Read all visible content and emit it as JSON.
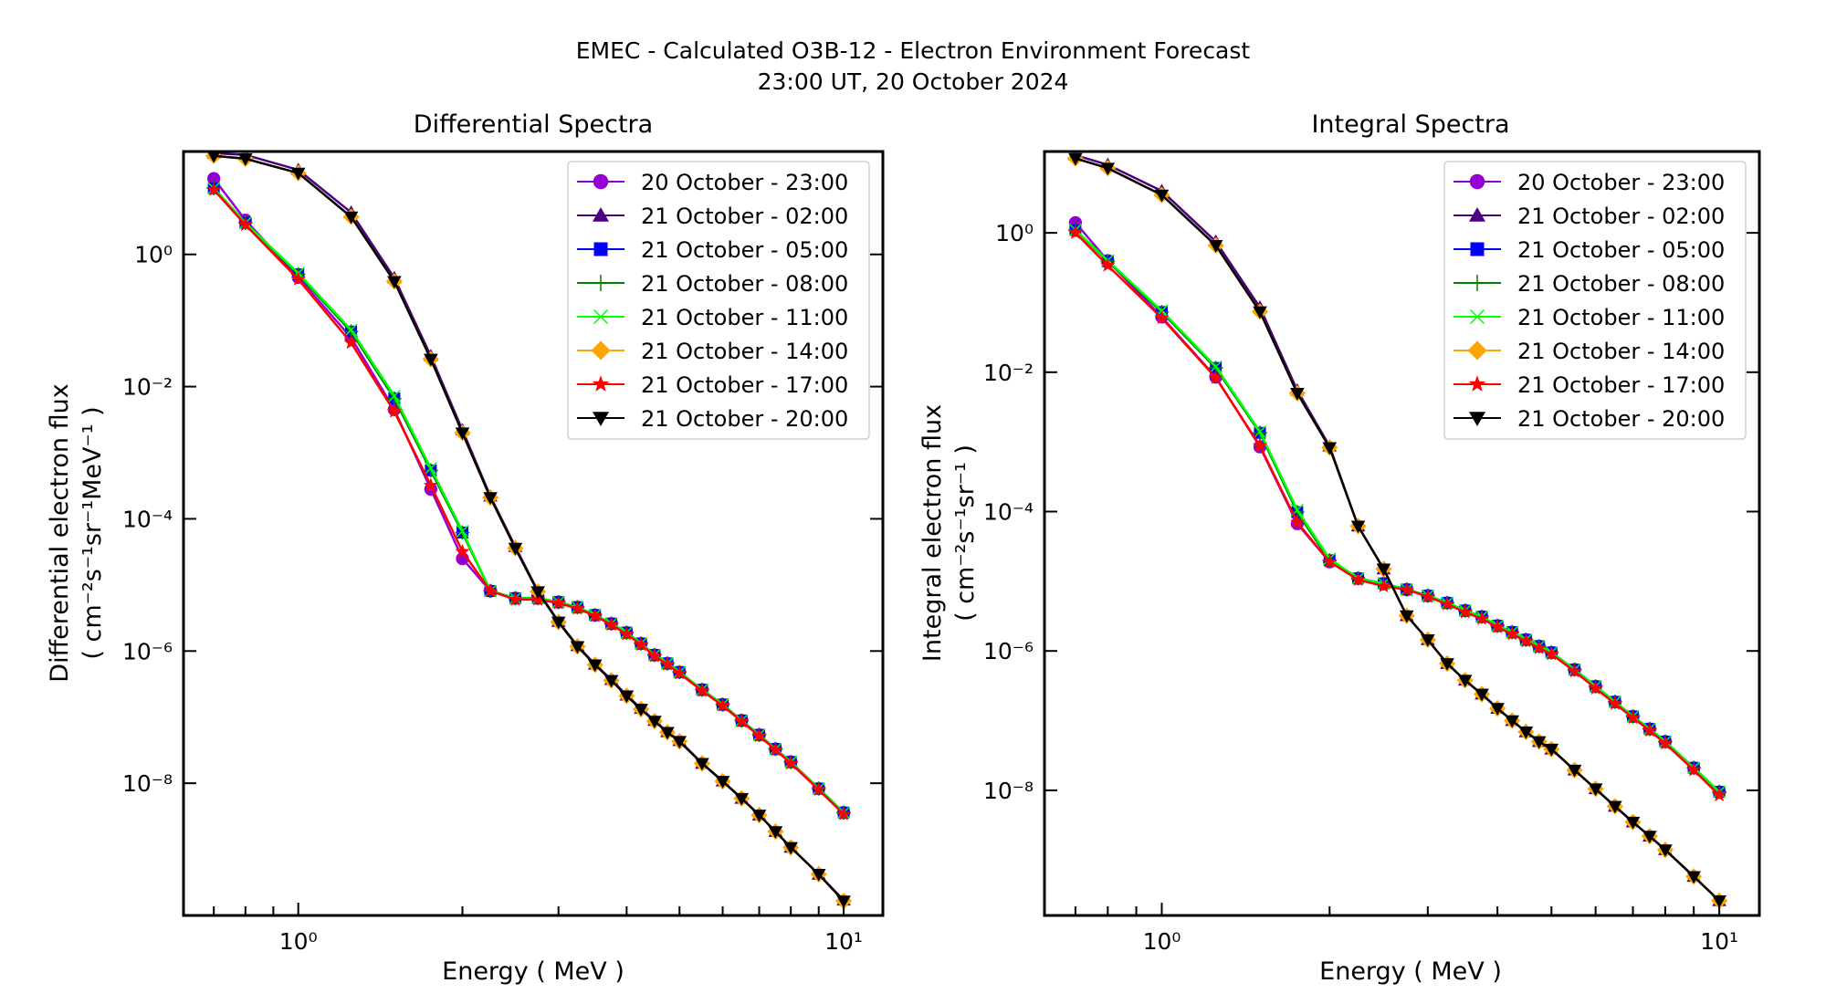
{
  "figure": {
    "title_line1": "EMEC - Calculated O3B-12 - Electron Environment Forecast",
    "title_line2": "23:00 UT, 20 October 2024"
  },
  "series_styles": [
    {
      "name": "20 October - 23:00",
      "color": "#9400D3",
      "marker": "circle"
    },
    {
      "name": "21 October - 02:00",
      "color": "#4B0082",
      "marker": "triangle-up"
    },
    {
      "name": "21 October - 05:00",
      "color": "#0000FF",
      "marker": "square"
    },
    {
      "name": "21 October - 08:00",
      "color": "#008000",
      "marker": "plus"
    },
    {
      "name": "21 October - 11:00",
      "color": "#00FF00",
      "marker": "x"
    },
    {
      "name": "21 October - 14:00",
      "color": "#FFA500",
      "marker": "diamond"
    },
    {
      "name": "21 October - 17:00",
      "color": "#FF0000",
      "marker": "star"
    },
    {
      "name": "21 October - 20:00",
      "color": "#000000",
      "marker": "triangle-down"
    }
  ],
  "chart_data": [
    {
      "type": "line",
      "title": "Differential Spectra",
      "xlabel": "Energy ( MeV )",
      "ylabel_line1": "Differential electron flux",
      "ylabel_line2": "( cm⁻²s⁻¹sr⁻¹MeV⁻¹ )",
      "xscale": "log",
      "yscale": "log",
      "xlim": [
        0.616,
        11.8
      ],
      "ylim": [
        1e-10,
        36
      ],
      "xticks": [
        {
          "value": 1,
          "label": "10⁰"
        },
        {
          "value": 10,
          "label": "10¹"
        }
      ],
      "yticks": [
        {
          "value": 1,
          "label": "10⁰"
        },
        {
          "value": 0.01,
          "label": "10⁻²"
        },
        {
          "value": 0.0001,
          "label": "10⁻⁴"
        },
        {
          "value": 1e-06,
          "label": "10⁻⁶"
        },
        {
          "value": 1e-08,
          "label": "10⁻⁸"
        }
      ],
      "legend": "top-right",
      "grid": false,
      "x": [
        0.7,
        0.8,
        1.0,
        1.25,
        1.5,
        1.75,
        2.0,
        2.25,
        2.5,
        2.75,
        3.0,
        3.25,
        3.5,
        3.75,
        4.0,
        4.25,
        4.5,
        4.75,
        5.0,
        5.5,
        6.0,
        6.5,
        7.0,
        7.5,
        8.0,
        9.0,
        10.0
      ],
      "series": [
        {
          "name": "20 October - 23:00",
          "values": [
            14,
            3.3,
            0.45,
            0.055,
            0.0045,
            0.00028,
            2.5e-05,
            8.1e-06,
            6.3e-06,
            6.3e-06,
            5.5e-06,
            4.6e-06,
            3.5e-06,
            2.6e-06,
            1.9e-06,
            1.3e-06,
            8.7e-07,
            6.5e-07,
            4.8e-07,
            2.6e-07,
            1.55e-07,
            8.9e-08,
            5.4e-08,
            3.3e-08,
            2.1e-08,
            8.3e-09,
            3.6e-09
          ]
        },
        {
          "name": "21 October - 02:00",
          "values": [
            34,
            32,
            19,
            4.3,
            0.44,
            0.029,
            0.0022,
            0.00022,
            3.8e-05,
            8.1e-06,
            2.8e-06,
            1.2e-06,
            6.3e-07,
            3.7e-07,
            2.15e-07,
            1.35e-07,
            8.9e-08,
            6e-08,
            4.4e-08,
            2e-08,
            1.08e-08,
            5.9e-09,
            3.3e-09,
            1.86e-09,
            1.07e-09,
            4.2e-10,
            1.7e-10
          ]
        },
        {
          "name": "21 October - 05:00",
          "values": [
            10,
            3.0,
            0.5,
            0.068,
            0.0066,
            0.00054,
            6.2e-05,
            8.1e-06,
            6.3e-06,
            6.3e-06,
            5.5e-06,
            4.6e-06,
            3.5e-06,
            2.6e-06,
            1.9e-06,
            1.3e-06,
            8.7e-07,
            6.5e-07,
            4.8e-07,
            2.6e-07,
            1.55e-07,
            8.9e-08,
            5.4e-08,
            3.3e-08,
            2.1e-08,
            8.3e-09,
            3.6e-09
          ]
        },
        {
          "name": "21 October - 08:00",
          "values": [
            10,
            3.0,
            0.5,
            0.068,
            0.0066,
            0.00054,
            6.2e-05,
            8.1e-06,
            6.3e-06,
            6.3e-06,
            5.5e-06,
            4.6e-06,
            3.5e-06,
            2.6e-06,
            1.9e-06,
            1.3e-06,
            8.7e-07,
            6.5e-07,
            4.8e-07,
            2.6e-07,
            1.55e-07,
            8.9e-08,
            5.4e-08,
            3.3e-08,
            2.1e-08,
            8.3e-09,
            3.6e-09
          ]
        },
        {
          "name": "21 October - 11:00",
          "values": [
            10,
            3.0,
            0.52,
            0.072,
            0.0072,
            0.00058,
            6.5e-05,
            8.1e-06,
            6.3e-06,
            6.3e-06,
            5.5e-06,
            4.6e-06,
            3.5e-06,
            2.6e-06,
            1.9e-06,
            1.3e-06,
            8.7e-07,
            6.5e-07,
            4.8e-07,
            2.6e-07,
            1.55e-07,
            8.9e-08,
            5.4e-08,
            3.3e-08,
            2.1e-08,
            8.3e-09,
            3.6e-09
          ]
        },
        {
          "name": "21 October - 14:00",
          "values": [
            31,
            28,
            17,
            3.7,
            0.39,
            0.026,
            0.002,
            0.00021,
            3.6e-05,
            7.9e-06,
            2.75e-06,
            1.17e-06,
            6.2e-07,
            3.6e-07,
            2.1e-07,
            1.32e-07,
            8.7e-08,
            5.9e-08,
            4.3e-08,
            2e-08,
            1.07e-08,
            5.9e-09,
            3.3e-09,
            1.86e-09,
            1.07e-09,
            4.2e-10,
            1.66e-10
          ]
        },
        {
          "name": "21 October - 17:00",
          "values": [
            9.5,
            2.8,
            0.42,
            0.046,
            0.0042,
            0.00032,
            3.2e-05,
            8.1e-06,
            6e-06,
            6e-06,
            5.3e-06,
            4.4e-06,
            3.4e-06,
            2.5e-06,
            1.8e-06,
            1.25e-06,
            8.4e-07,
            6.3e-07,
            4.6e-07,
            2.5e-07,
            1.5e-07,
            8.6e-08,
            5.2e-08,
            3.2e-08,
            2e-08,
            8e-09,
            3.4e-09
          ]
        },
        {
          "name": "21 October - 20:00",
          "values": [
            31,
            28,
            17,
            3.7,
            0.39,
            0.026,
            0.002,
            0.00021,
            3.6e-05,
            7.9e-06,
            2.75e-06,
            1.17e-06,
            6.2e-07,
            3.6e-07,
            2.1e-07,
            1.32e-07,
            8.7e-08,
            5.9e-08,
            4.3e-08,
            2e-08,
            1.07e-08,
            5.9e-09,
            3.3e-09,
            1.86e-09,
            1.07e-09,
            4.2e-10,
            1.66e-10
          ]
        }
      ]
    },
    {
      "type": "line",
      "title": "Integral Spectra",
      "xlabel": "Energy ( MeV )",
      "ylabel_line1": "Integral electron flux",
      "ylabel_line2": "( cm⁻²s⁻¹sr⁻¹ )",
      "xscale": "log",
      "yscale": "log",
      "xlim": [
        0.616,
        11.8
      ],
      "ylim": [
        1.6e-10,
        14.7
      ],
      "xticks": [
        {
          "value": 1,
          "label": "10⁰"
        },
        {
          "value": 10,
          "label": "10¹"
        }
      ],
      "yticks": [
        {
          "value": 1,
          "label": "10⁰"
        },
        {
          "value": 0.01,
          "label": "10⁻²"
        },
        {
          "value": 0.0001,
          "label": "10⁻⁴"
        },
        {
          "value": 1e-06,
          "label": "10⁻⁶"
        },
        {
          "value": 1e-08,
          "label": "10⁻⁸"
        }
      ],
      "legend": "top-right",
      "grid": false,
      "x": [
        0.7,
        0.8,
        1.0,
        1.25,
        1.5,
        1.75,
        2.0,
        2.25,
        2.5,
        2.75,
        3.0,
        3.25,
        3.5,
        3.75,
        4.0,
        4.25,
        4.5,
        4.75,
        5.0,
        5.5,
        6.0,
        6.5,
        7.0,
        7.5,
        8.0,
        9.0,
        10.0
      ],
      "series": [
        {
          "name": "20 October - 23:00",
          "values": [
            1.4,
            0.4,
            0.062,
            0.0085,
            0.00085,
            6.7e-05,
            1.9e-05,
            1.1e-05,
            9.3e-06,
            7.6e-06,
            6.2e-06,
            4.9e-06,
            3.8e-06,
            3.1e-06,
            2.3e-06,
            1.86e-06,
            1.45e-06,
            1.17e-06,
            9.5e-07,
            5.4e-07,
            3.1e-07,
            1.86e-07,
            1.15e-07,
            7.6e-08,
            5e-08,
            2.1e-08,
            9.5e-09
          ]
        },
        {
          "name": "21 October - 02:00",
          "values": [
            13,
            9.5,
            4.0,
            0.75,
            0.085,
            0.0055,
            0.00087,
            6.2e-05,
            1.5e-05,
            3.2e-06,
            1.45e-06,
            6.6e-07,
            3.8e-07,
            2.4e-07,
            1.5e-07,
            1e-07,
            6.9e-08,
            5e-08,
            3.9e-08,
            1.95e-08,
            1.05e-08,
            5.9e-09,
            3.5e-09,
            2.2e-09,
            1.4e-09,
            5.8e-10,
            2.6e-10
          ]
        },
        {
          "name": "21 October - 05:00",
          "values": [
            1.1,
            0.39,
            0.073,
            0.0115,
            0.00135,
            9.8e-05,
            2e-05,
            1.1e-05,
            9.3e-06,
            7.6e-06,
            6.2e-06,
            4.9e-06,
            3.8e-06,
            3.1e-06,
            2.3e-06,
            1.86e-06,
            1.45e-06,
            1.17e-06,
            9.5e-07,
            5.4e-07,
            3.1e-07,
            1.86e-07,
            1.15e-07,
            7.6e-08,
            5e-08,
            2.1e-08,
            9.5e-09
          ]
        },
        {
          "name": "21 October - 08:00",
          "values": [
            1.1,
            0.39,
            0.073,
            0.0115,
            0.00135,
            9.8e-05,
            2e-05,
            1.1e-05,
            9.3e-06,
            7.6e-06,
            6.2e-06,
            4.9e-06,
            3.8e-06,
            3.1e-06,
            2.3e-06,
            1.86e-06,
            1.45e-06,
            1.17e-06,
            9.5e-07,
            5.4e-07,
            3.1e-07,
            1.86e-07,
            1.15e-07,
            7.6e-08,
            5e-08,
            2.1e-08,
            9.5e-09
          ]
        },
        {
          "name": "21 October - 11:00",
          "values": [
            1.1,
            0.4,
            0.076,
            0.012,
            0.0014,
            0.000105,
            2.1e-05,
            1.1e-05,
            9.3e-06,
            7.6e-06,
            6.2e-06,
            4.9e-06,
            3.8e-06,
            3.1e-06,
            2.3e-06,
            1.86e-06,
            1.45e-06,
            1.17e-06,
            9.5e-07,
            5.4e-07,
            3.1e-07,
            1.86e-07,
            1.15e-07,
            7.6e-08,
            5e-08,
            2.1e-08,
            9.5e-09
          ]
        },
        {
          "name": "21 October - 14:00",
          "values": [
            11.7,
            8.5,
            3.5,
            0.66,
            0.074,
            0.005,
            0.00083,
            6.2e-05,
            1.5e-05,
            3.2e-06,
            1.45e-06,
            6.6e-07,
            3.8e-07,
            2.4e-07,
            1.5e-07,
            1e-07,
            6.9e-08,
            5e-08,
            3.9e-08,
            1.95e-08,
            1.05e-08,
            5.9e-09,
            3.5e-09,
            2.2e-09,
            1.4e-09,
            5.8e-10,
            2.6e-10
          ]
        },
        {
          "name": "21 October - 17:00",
          "values": [
            1.0,
            0.34,
            0.06,
            0.0083,
            0.00088,
            7e-05,
            1.9e-05,
            1.05e-05,
            8.5e-06,
            7.6e-06,
            6e-06,
            4.7e-06,
            3.6e-06,
            2.9e-06,
            2.2e-06,
            1.75e-06,
            1.38e-06,
            1.1e-06,
            9e-07,
            5.1e-07,
            2.9e-07,
            1.75e-07,
            1.1e-07,
            7.2e-08,
            4.7e-08,
            1.95e-08,
            8.5e-09
          ]
        },
        {
          "name": "21 October - 20:00",
          "values": [
            11.7,
            8.5,
            3.5,
            0.66,
            0.074,
            0.005,
            0.00083,
            6.2e-05,
            1.5e-05,
            3.2e-06,
            1.45e-06,
            6.6e-07,
            3.8e-07,
            2.4e-07,
            1.5e-07,
            1e-07,
            6.9e-08,
            5e-08,
            3.9e-08,
            1.95e-08,
            1.05e-08,
            5.9e-09,
            3.5e-09,
            2.2e-09,
            1.4e-09,
            5.8e-10,
            2.6e-10
          ]
        }
      ]
    }
  ]
}
